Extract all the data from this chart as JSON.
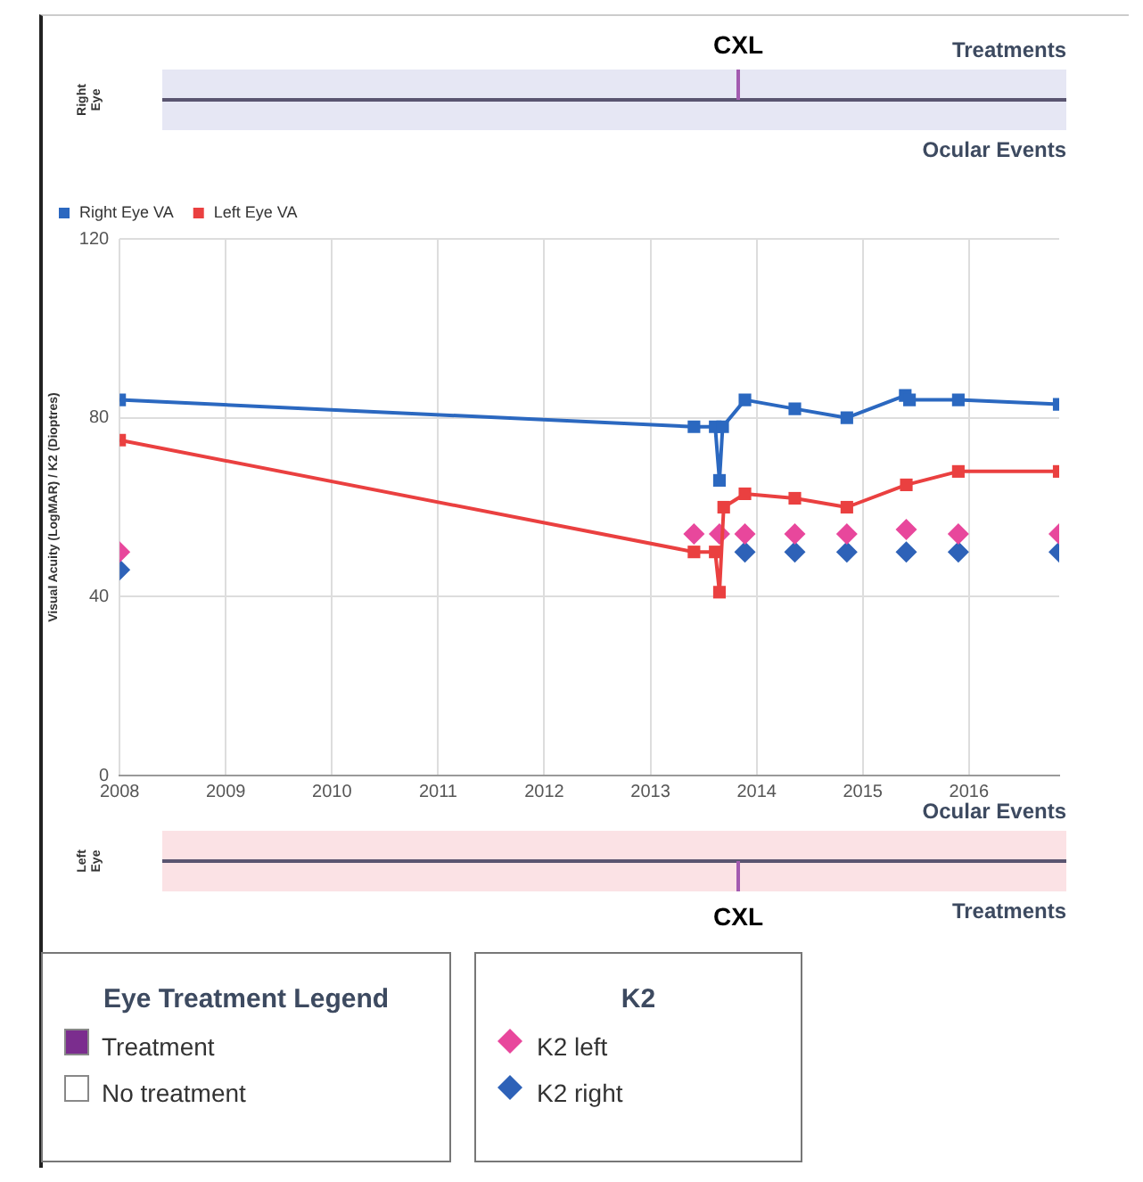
{
  "chart_data": [
    {
      "type": "other",
      "ylabel": "Right Eye",
      "annotations": [
        "CXL",
        "Treatments",
        "Ocular Events"
      ]
    },
    {
      "type": "line",
      "ylabel": "Visual Acuity (LogMAR) / K2 (Dioptres)",
      "xlim": [
        2008,
        2016.85
      ],
      "xticks": [
        2008,
        2009,
        2010,
        2011,
        2012,
        2013,
        2014,
        2015,
        2016
      ],
      "ylim": [
        0,
        120
      ],
      "yticks": [
        0,
        40,
        80,
        120
      ],
      "grid": true,
      "legend": "top left",
      "marker": "square",
      "series": [
        {
          "name": "Right Eye VA",
          "color": "#2b68c0",
          "x": [
            2008,
            2013.41,
            2013.61,
            2013.65,
            2013.68,
            2013.89,
            2014.36,
            2014.85,
            2015.4,
            2015.44,
            2015.9,
            2016.85
          ],
          "values": [
            84,
            78,
            78,
            66,
            78,
            84,
            82,
            80,
            85,
            84,
            84,
            83
          ]
        },
        {
          "name": "Left Eye VA",
          "color": "#ea4040",
          "x": [
            2008,
            2013.41,
            2013.61,
            2013.65,
            2013.69,
            2013.89,
            2014.36,
            2014.85,
            2015.41,
            2015.9,
            2016.85
          ],
          "values": [
            75,
            50,
            50,
            41,
            60,
            63,
            62,
            60,
            65,
            68,
            68
          ]
        },
        {
          "type": "scatter",
          "marker": "diamond",
          "color": "#e8479c",
          "x": [
            2008,
            2013.41,
            2013.61,
            2013.65,
            2013.89,
            2014.36,
            2014.85,
            2015.41,
            2015.9,
            2016.85
          ],
          "values": [
            50,
            54,
            null,
            54,
            54,
            54,
            54,
            55,
            54,
            54
          ]
        },
        {
          "type": "scatter",
          "marker": "diamond",
          "color": "#2e62b8",
          "x": [
            2008,
            2013.41,
            2013.61,
            2013.65,
            2013.89,
            2014.36,
            2014.85,
            2015.41,
            2015.9,
            2016.85
          ],
          "values": [
            46,
            null,
            null,
            null,
            50,
            50,
            50,
            50,
            50,
            50
          ]
        }
      ]
    },
    {
      "type": "other",
      "ylabel": "Left Eye",
      "annotations": [
        "Ocular Events",
        "Treatments",
        "CXL"
      ]
    },
    {
      "type": "other",
      "legend_title": "Eye Treatment Legend",
      "categories": [
        "Treatment",
        "No treatment"
      ],
      "colors": [
        "#7b2d8e",
        "#ffffff"
      ]
    },
    {
      "type": "other",
      "legend_title": "K2",
      "categories": [
        "K2 left",
        "K2 right"
      ],
      "colors": [
        "#e8479c",
        "#2e62b8"
      ]
    }
  ]
}
